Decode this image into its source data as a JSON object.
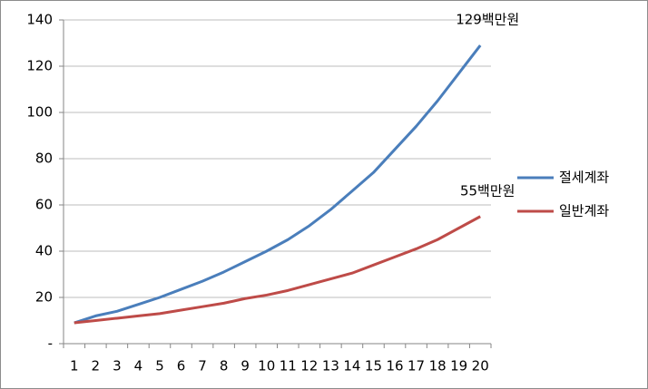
{
  "chart_data": {
    "type": "line",
    "categories": [
      "1",
      "2",
      "3",
      "4",
      "5",
      "6",
      "7",
      "8",
      "9",
      "10",
      "11",
      "12",
      "13",
      "14",
      "15",
      "16",
      "17",
      "18",
      "19",
      "20"
    ],
    "series": [
      {
        "name": "절세계좌",
        "color": "#4a7ebb",
        "values": [
          9,
          12,
          14,
          17,
          20,
          23.5,
          27,
          31,
          35.5,
          40,
          45,
          51,
          58,
          66,
          74,
          84,
          94,
          105,
          117,
          129
        ],
        "value_labels": [
          null,
          null,
          null,
          null,
          null,
          null,
          null,
          null,
          null,
          null,
          null,
          null,
          null,
          null,
          null,
          null,
          null,
          null,
          null,
          "129백만원"
        ]
      },
      {
        "name": "일반계좌",
        "color": "#be4b48",
        "values": [
          9,
          10,
          11,
          12,
          13,
          14.5,
          16,
          17.5,
          19.5,
          21,
          23,
          25.5,
          28,
          30.5,
          34,
          37.5,
          41,
          45,
          50,
          55
        ],
        "value_labels": [
          null,
          null,
          null,
          null,
          null,
          null,
          null,
          null,
          null,
          null,
          null,
          null,
          null,
          null,
          null,
          null,
          null,
          null,
          null,
          "55백만원"
        ]
      }
    ],
    "ylim": [
      0,
      140
    ],
    "yticks": [
      {
        "value": 0,
        "label": "-"
      },
      20,
      40,
      60,
      80,
      100,
      120,
      140
    ],
    "grid": true,
    "legend": "right"
  }
}
